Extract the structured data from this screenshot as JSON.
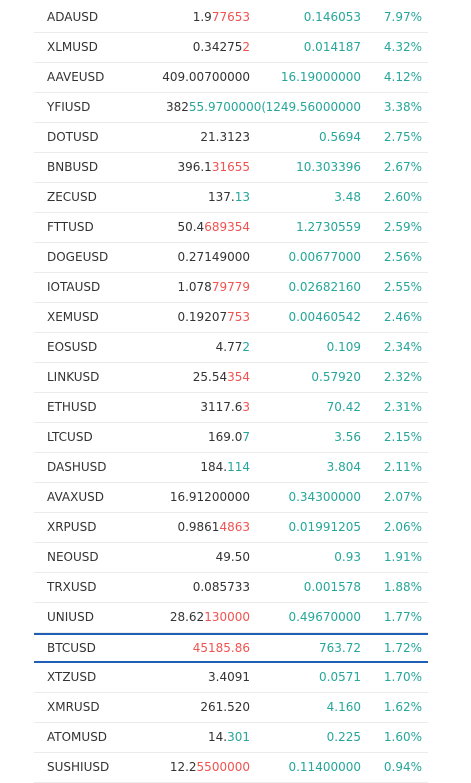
{
  "colors": {
    "up": "#26a69a",
    "down": "#ef5350",
    "text": "#333333",
    "highlight_border": "#1f5fb4"
  },
  "rows": [
    {
      "symbol": "ADAUSD",
      "last_pre": "1.9",
      "last_suf": "77653",
      "suf_dir": "dn",
      "change": "0.146053",
      "pct": "7.97%"
    },
    {
      "symbol": "XLMUSD",
      "last_pre": "0.34275",
      "last_suf": "2",
      "suf_dir": "dn",
      "change": "0.014187",
      "pct": "4.32%"
    },
    {
      "symbol": "AAVEUSD",
      "last_pre": "409.00700000",
      "last_suf": "",
      "suf_dir": "",
      "change": "16.19000000",
      "pct": "4.12%"
    },
    {
      "symbol": "YFIUSD",
      "last_pre": "382",
      "last_suf": "55.9700000(",
      "suf_dir": "up",
      "change": "1249.56000000",
      "pct": "3.38%"
    },
    {
      "symbol": "DOTUSD",
      "last_pre": "21.3123",
      "last_suf": "",
      "suf_dir": "",
      "change": "0.5694",
      "pct": "2.75%"
    },
    {
      "symbol": "BNBUSD",
      "last_pre": "396.1",
      "last_suf": "31655",
      "suf_dir": "dn",
      "change": "10.303396",
      "pct": "2.67%"
    },
    {
      "symbol": "ZECUSD",
      "last_pre": "137.",
      "last_suf": "13",
      "suf_dir": "up",
      "change": "3.48",
      "pct": "2.60%"
    },
    {
      "symbol": "FTTUSD",
      "last_pre": "50.4",
      "last_suf": "689354",
      "suf_dir": "dn",
      "change": "1.2730559",
      "pct": "2.59%"
    },
    {
      "symbol": "DOGEUSD",
      "last_pre": "0.27149000",
      "last_suf": "",
      "suf_dir": "",
      "change": "0.00677000",
      "pct": "2.56%"
    },
    {
      "symbol": "IOTAUSD",
      "last_pre": "1.078",
      "last_suf": "79779",
      "suf_dir": "dn",
      "change": "0.02682160",
      "pct": "2.55%"
    },
    {
      "symbol": "XEMUSD",
      "last_pre": "0.19207",
      "last_suf": "753",
      "suf_dir": "dn",
      "change": "0.00460542",
      "pct": "2.46%"
    },
    {
      "symbol": "EOSUSD",
      "last_pre": "4.77",
      "last_suf": "2",
      "suf_dir": "up",
      "change": "0.109",
      "pct": "2.34%"
    },
    {
      "symbol": "LINKUSD",
      "last_pre": "25.54",
      "last_suf": "354",
      "suf_dir": "dn",
      "change": "0.57920",
      "pct": "2.32%"
    },
    {
      "symbol": "ETHUSD",
      "last_pre": "3117.6",
      "last_suf": "3",
      "suf_dir": "dn",
      "change": "70.42",
      "pct": "2.31%"
    },
    {
      "symbol": "LTCUSD",
      "last_pre": "169.0",
      "last_suf": "7",
      "suf_dir": "up",
      "change": "3.56",
      "pct": "2.15%"
    },
    {
      "symbol": "DASHUSD",
      "last_pre": "184.",
      "last_suf": "114",
      "suf_dir": "up",
      "change": "3.804",
      "pct": "2.11%"
    },
    {
      "symbol": "AVAXUSD",
      "last_pre": "16.91200000",
      "last_suf": "",
      "suf_dir": "",
      "change": "0.34300000",
      "pct": "2.07%"
    },
    {
      "symbol": "XRPUSD",
      "last_pre": "0.9861",
      "last_suf": "4863",
      "suf_dir": "dn",
      "change": "0.01991205",
      "pct": "2.06%"
    },
    {
      "symbol": "NEOUSD",
      "last_pre": "49.50",
      "last_suf": "",
      "suf_dir": "",
      "change": "0.93",
      "pct": "1.91%"
    },
    {
      "symbol": "TRXUSD",
      "last_pre": "0.085733",
      "last_suf": "",
      "suf_dir": "",
      "change": "0.001578",
      "pct": "1.88%"
    },
    {
      "symbol": "UNIUSD",
      "last_pre": "28.62",
      "last_suf": "130000",
      "suf_dir": "dn",
      "change": "0.49670000",
      "pct": "1.77%"
    },
    {
      "symbol": "BTCUSD",
      "last_pre": "",
      "last_suf": "45185.86",
      "suf_dir": "dn",
      "change": "763.72",
      "pct": "1.72%",
      "highlight": true
    },
    {
      "symbol": "XTZUSD",
      "last_pre": "3.4091",
      "last_suf": "",
      "suf_dir": "",
      "change": "0.0571",
      "pct": "1.70%"
    },
    {
      "symbol": "XMRUSD",
      "last_pre": "261.520",
      "last_suf": "",
      "suf_dir": "",
      "change": "4.160",
      "pct": "1.62%"
    },
    {
      "symbol": "ATOMUSD",
      "last_pre": "14.",
      "last_suf": "301",
      "suf_dir": "up",
      "change": "0.225",
      "pct": "1.60%"
    },
    {
      "symbol": "SUSHIUSD",
      "last_pre": "12.2",
      "last_suf": "5500000",
      "suf_dir": "dn",
      "change": "0.11400000",
      "pct": "0.94%"
    }
  ]
}
